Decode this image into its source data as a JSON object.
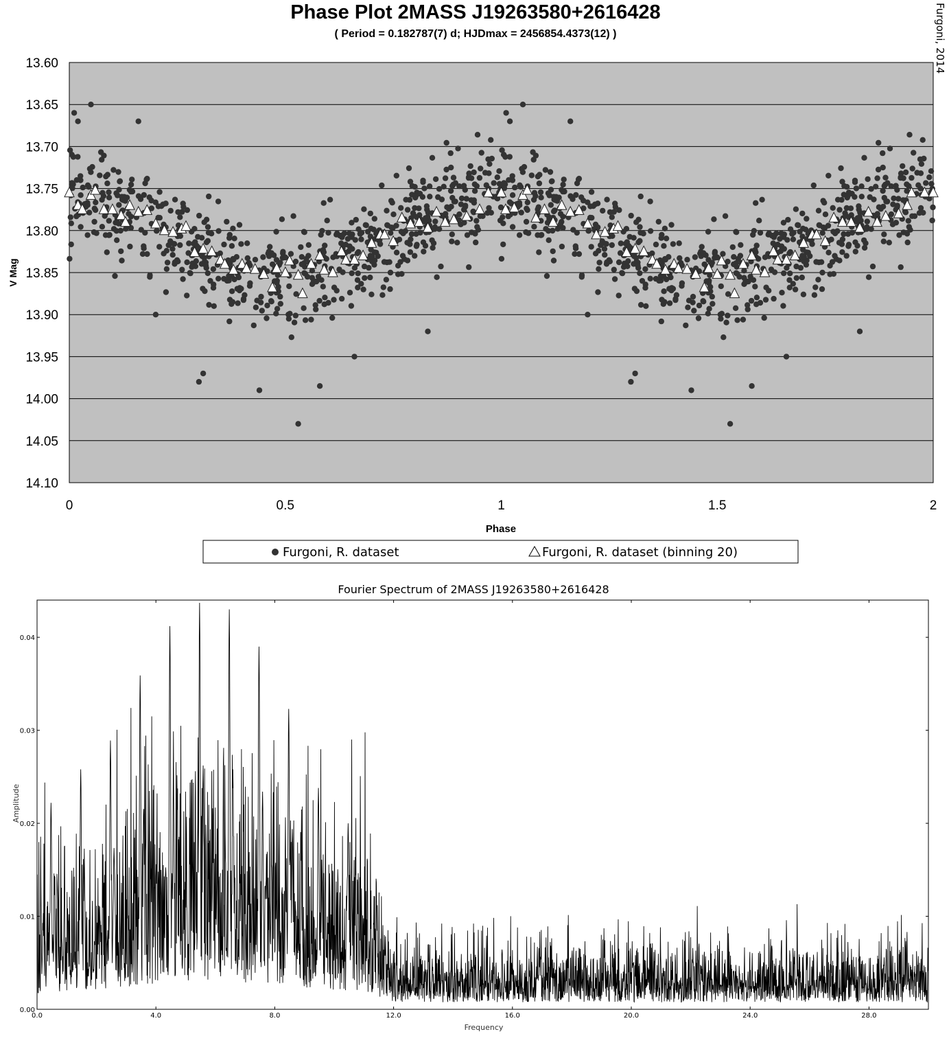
{
  "chart_data": [
    {
      "type": "scatter",
      "title": "Phase Plot 2MASS J19263580+2616428",
      "subtitle": "( Period = 0.182787(7) d; HJDmax = 2456854.4373(12) )",
      "credit": "Furgoni, 2014",
      "xlabel": "Phase",
      "ylabel": "V Mag",
      "xlim": [
        0,
        2
      ],
      "ylim": [
        13.6,
        14.1
      ],
      "y_inverted": true,
      "x_ticks": [
        "0",
        "0.5",
        "1",
        "1.5",
        "2"
      ],
      "y_ticks": [
        "13.60",
        "13.65",
        "13.70",
        "13.75",
        "13.80",
        "13.85",
        "13.90",
        "13.95",
        "14.00",
        "14.05",
        "14.10"
      ],
      "grid": "horizontal",
      "plot_background": "#c0c0c0",
      "legend_position": "bottom",
      "series": [
        {
          "name": "Furgoni, R. dataset",
          "marker": "circle",
          "color": "#333333",
          "point_count_per_cycle": 700,
          "model": {
            "mean": 13.806,
            "semi_amplitude": 0.05,
            "min_phase": 0.5,
            "scatter_sigma": 0.038
          },
          "outliers": [
            [
              0.05,
              13.65
            ],
            [
              0.44,
              13.99
            ],
            [
              0.53,
              14.03
            ],
            [
              0.3,
              13.98
            ],
            [
              0.31,
              13.97
            ],
            [
              0.58,
              13.985
            ],
            [
              0.83,
              13.92
            ],
            [
              0.2,
              13.9
            ],
            [
              0.66,
              13.95
            ],
            [
              0.02,
              13.67
            ],
            [
              0.16,
              13.67
            ]
          ]
        },
        {
          "name": "Furgoni, R. dataset (binning 20)",
          "marker": "triangle",
          "color": "#ffffff",
          "points": [
            [
              0.0,
              13.755
            ],
            [
              0.02,
              13.77
            ],
            [
              0.03,
              13.775
            ],
            [
              0.05,
              13.758
            ],
            [
              0.06,
              13.752
            ],
            [
              0.08,
              13.775
            ],
            [
              0.1,
              13.775
            ],
            [
              0.12,
              13.782
            ],
            [
              0.13,
              13.79
            ],
            [
              0.14,
              13.77
            ],
            [
              0.16,
              13.778
            ],
            [
              0.18,
              13.776
            ],
            [
              0.2,
              13.792
            ],
            [
              0.22,
              13.8
            ],
            [
              0.24,
              13.802
            ],
            [
              0.26,
              13.798
            ],
            [
              0.27,
              13.795
            ],
            [
              0.29,
              13.826
            ],
            [
              0.31,
              13.822
            ],
            [
              0.33,
              13.825
            ],
            [
              0.35,
              13.835
            ],
            [
              0.36,
              13.84
            ],
            [
              0.38,
              13.847
            ],
            [
              0.4,
              13.84
            ],
            [
              0.41,
              13.845
            ],
            [
              0.43,
              13.846
            ],
            [
              0.45,
              13.852
            ],
            [
              0.47,
              13.868
            ],
            [
              0.48,
              13.845
            ],
            [
              0.5,
              13.85
            ],
            [
              0.51,
              13.836
            ],
            [
              0.53,
              13.853
            ],
            [
              0.54,
              13.875
            ],
            [
              0.56,
              13.84
            ],
            [
              0.58,
              13.83
            ],
            [
              0.59,
              13.847
            ],
            [
              0.61,
              13.85
            ],
            [
              0.63,
              13.825
            ],
            [
              0.64,
              13.835
            ],
            [
              0.66,
              13.835
            ],
            [
              0.68,
              13.83
            ],
            [
              0.7,
              13.815
            ],
            [
              0.72,
              13.805
            ],
            [
              0.73,
              13.805
            ],
            [
              0.75,
              13.813
            ],
            [
              0.77,
              13.785
            ],
            [
              0.79,
              13.792
            ],
            [
              0.81,
              13.79
            ],
            [
              0.83,
              13.797
            ],
            [
              0.85,
              13.778
            ],
            [
              0.87,
              13.79
            ],
            [
              0.89,
              13.787
            ],
            [
              0.92,
              13.783
            ],
            [
              0.95,
              13.775
            ],
            [
              0.97,
              13.755
            ],
            [
              1.0,
              13.755
            ],
            [
              1.01,
              13.775
            ],
            [
              1.03,
              13.773
            ],
            [
              1.05,
              13.758
            ],
            [
              1.06,
              13.752
            ],
            [
              1.08,
              13.785
            ],
            [
              1.1,
              13.775
            ],
            [
              1.12,
              13.79
            ],
            [
              1.14,
              13.77
            ],
            [
              1.16,
              13.778
            ],
            [
              1.18,
              13.776
            ],
            [
              1.2,
              13.792
            ],
            [
              1.22,
              13.805
            ],
            [
              1.24,
              13.802
            ],
            [
              1.26,
              13.798
            ],
            [
              1.27,
              13.795
            ],
            [
              1.29,
              13.826
            ],
            [
              1.31,
              13.822
            ],
            [
              1.33,
              13.825
            ],
            [
              1.35,
              13.835
            ],
            [
              1.36,
              13.84
            ],
            [
              1.38,
              13.847
            ],
            [
              1.4,
              13.84
            ],
            [
              1.41,
              13.845
            ],
            [
              1.43,
              13.846
            ],
            [
              1.45,
              13.852
            ],
            [
              1.47,
              13.868
            ],
            [
              1.48,
              13.845
            ],
            [
              1.5,
              13.852
            ],
            [
              1.51,
              13.836
            ],
            [
              1.53,
              13.853
            ],
            [
              1.54,
              13.875
            ],
            [
              1.56,
              13.84
            ],
            [
              1.58,
              13.83
            ],
            [
              1.59,
              13.847
            ],
            [
              1.61,
              13.85
            ],
            [
              1.63,
              13.825
            ],
            [
              1.64,
              13.835
            ],
            [
              1.66,
              13.835
            ],
            [
              1.68,
              13.83
            ],
            [
              1.7,
              13.815
            ],
            [
              1.72,
              13.805
            ],
            [
              1.73,
              13.805
            ],
            [
              1.75,
              13.813
            ],
            [
              1.77,
              13.785
            ],
            [
              1.79,
              13.79
            ],
            [
              1.81,
              13.79
            ],
            [
              1.83,
              13.797
            ],
            [
              1.85,
              13.778
            ],
            [
              1.87,
              13.79
            ],
            [
              1.89,
              13.783
            ],
            [
              1.92,
              13.78
            ],
            [
              1.94,
              13.77
            ],
            [
              1.95,
              13.755
            ],
            [
              1.98,
              13.755
            ],
            [
              2.0,
              13.755
            ]
          ]
        }
      ]
    },
    {
      "type": "line",
      "title": "Fourier Spectrum of 2MASS J19263580+2616428",
      "xlabel": "Frequency",
      "ylabel": "Amplitude",
      "xlim": [
        0,
        30
      ],
      "ylim": [
        0,
        0.044
      ],
      "x_ticks": [
        "0.0",
        "4.0",
        "8.0",
        "12.0",
        "16.0",
        "20.0",
        "24.0",
        "28.0"
      ],
      "y_ticks": [
        "0.00",
        "0.01",
        "0.02",
        "0.03",
        "0.04"
      ],
      "grid": false,
      "line_color": "#000000",
      "peaks": [
        [
          5.47,
          0.0437
        ],
        [
          6.47,
          0.043
        ],
        [
          4.47,
          0.0412
        ],
        [
          7.47,
          0.039
        ],
        [
          3.47,
          0.0359
        ],
        [
          8.47,
          0.0323
        ],
        [
          2.47,
          0.0289
        ],
        [
          9.47,
          0.0238
        ],
        [
          1.47,
          0.0258
        ],
        [
          0.47,
          0.0222
        ],
        [
          10.47,
          0.02
        ]
      ],
      "continuum": {
        "low_band": [
          0,
          10.5
        ],
        "low_level": 0.0095,
        "high_level": 0.003
      },
      "sample_step": 0.01
    }
  ],
  "legend": {
    "items": [
      "Furgoni, R. dataset",
      "Furgoni, R. dataset (binning 20)"
    ]
  }
}
